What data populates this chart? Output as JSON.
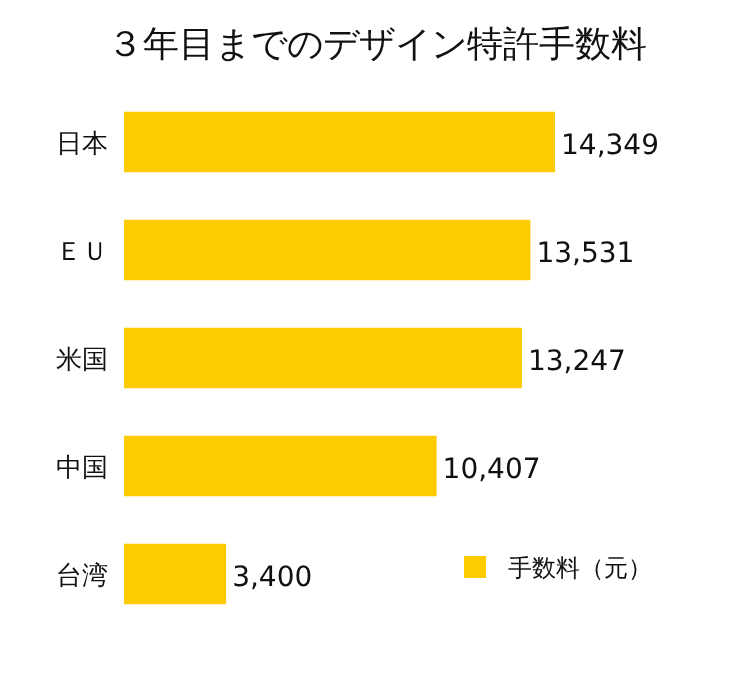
{
  "chart_data": {
    "type": "bar",
    "orientation": "horizontal",
    "title": "３年目までのデザイン特許手数料",
    "categories": [
      "日本",
      "ＥＵ",
      "米国",
      "中国",
      "台湾"
    ],
    "series": [
      {
        "name": "手数料（元）",
        "color": "#fccb00",
        "values": [
          14349,
          13531,
          13247,
          10407,
          3400
        ],
        "value_labels": [
          "14,349",
          "13,531",
          "13,247",
          "10,407",
          "3,400"
        ]
      }
    ],
    "legend": "bottom right"
  }
}
